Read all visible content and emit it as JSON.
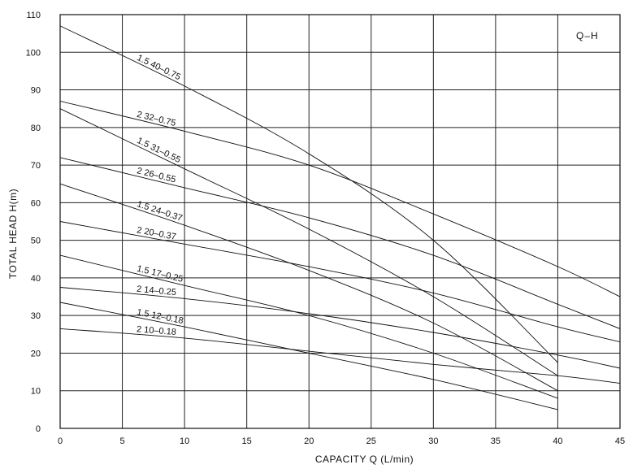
{
  "chart_data": {
    "type": "line",
    "title": "Q–H",
    "xlabel": "CAPACITY  Q (L/min)",
    "ylabel": "TOTAL HEAD  H(m)",
    "xlim": [
      0,
      45
    ],
    "ylim": [
      0,
      110
    ],
    "xticks": [
      0,
      5,
      10,
      15,
      20,
      25,
      30,
      35,
      40,
      45
    ],
    "yticks": [
      0,
      10,
      20,
      30,
      40,
      50,
      60,
      70,
      80,
      90,
      100,
      110
    ],
    "grid": true,
    "series": [
      {
        "name": "1.5  40–0.75",
        "x": [
          0,
          10,
          20,
          30,
          40
        ],
        "y": [
          107,
          91,
          73,
          50,
          17.5
        ]
      },
      {
        "name": "2  32–0.75",
        "x": [
          0,
          10,
          20,
          30,
          40,
          45
        ],
        "y": [
          87,
          79,
          70,
          57,
          43,
          35
        ]
      },
      {
        "name": "1.5  31–0.55",
        "x": [
          0,
          10,
          20,
          30,
          40
        ],
        "y": [
          85,
          69,
          53,
          35,
          14
        ]
      },
      {
        "name": "2  26–0.55",
        "x": [
          0,
          10,
          20,
          30,
          40,
          45
        ],
        "y": [
          72,
          64,
          56,
          46,
          33,
          26.5
        ]
      },
      {
        "name": "1.5  24–0.37",
        "x": [
          0,
          10,
          20,
          30,
          40
        ],
        "y": [
          65,
          54,
          42,
          28,
          10
        ]
      },
      {
        "name": "2  20–0.37",
        "x": [
          0,
          10,
          20,
          30,
          40,
          45
        ],
        "y": [
          55,
          49,
          43,
          36,
          27,
          23
        ]
      },
      {
        "name": "1.5  17–0.25",
        "x": [
          0,
          10,
          20,
          30,
          40
        ],
        "y": [
          46,
          38,
          30,
          20,
          8
        ]
      },
      {
        "name": "2  14–0.25",
        "x": [
          0,
          10,
          20,
          30,
          40,
          45
        ],
        "y": [
          37.5,
          34.5,
          30.5,
          25.5,
          19.5,
          16
        ]
      },
      {
        "name": "1.5  12–0.18",
        "x": [
          0,
          10,
          20,
          30,
          40
        ],
        "y": [
          33.5,
          27,
          20,
          13,
          5
        ]
      },
      {
        "name": "2  10–0.18",
        "x": [
          0,
          10,
          20,
          30,
          40,
          45
        ],
        "y": [
          26.5,
          24,
          20.5,
          17,
          14,
          12
        ]
      }
    ]
  }
}
